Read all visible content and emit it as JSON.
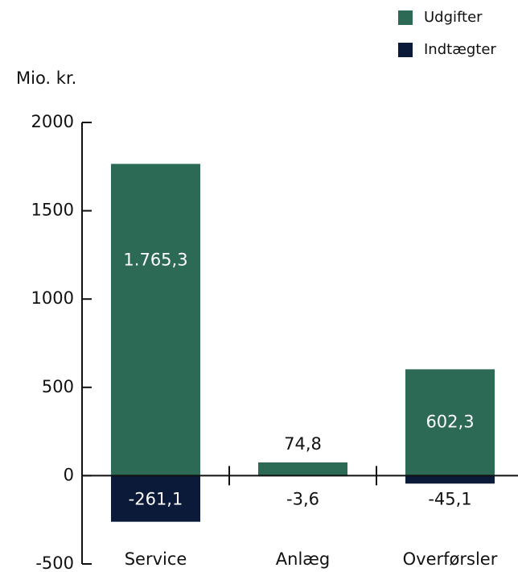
{
  "chart_data": {
    "type": "bar",
    "y_label": "Mio. kr.",
    "categories": [
      "Service",
      "Anlæg",
      "Overførsler"
    ],
    "series": [
      {
        "name": "Udgifter",
        "color": "#2c6a55",
        "values": [
          1765.3,
          74.8,
          602.3
        ],
        "value_labels": [
          "1.765,3",
          "74,8",
          "602,3"
        ]
      },
      {
        "name": "Indtægter",
        "color": "#0b1a38",
        "values": [
          -261.1,
          -3.6,
          -45.1
        ],
        "value_labels": [
          "-261,1",
          "-3,6",
          "-45,1"
        ]
      }
    ],
    "ylim": [
      -500,
      2000
    ],
    "yticks": [
      -500,
      0,
      500,
      1000,
      1500,
      2000
    ]
  }
}
